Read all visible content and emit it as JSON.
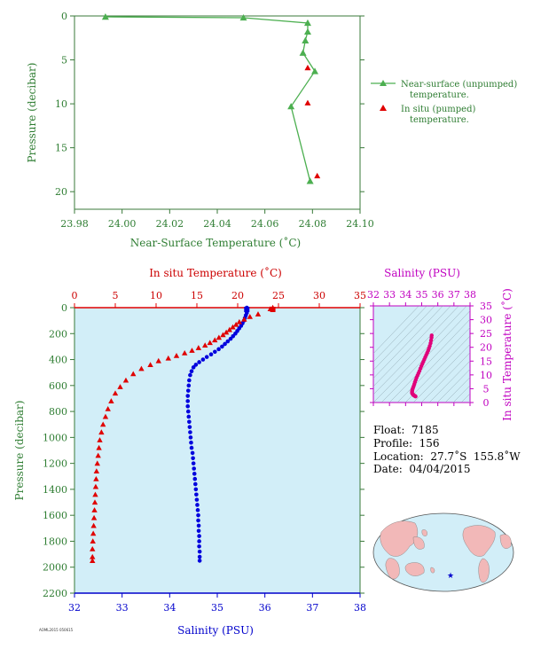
{
  "chart_data": [
    {
      "type": "line",
      "xlabel": "Near-Surface Temperature (˚C)",
      "ylabel": "Pressure (decibar)",
      "xlim": [
        23.98,
        24.1
      ],
      "ylim": [
        0,
        22
      ],
      "x_ticks": [
        "23.98",
        "24.00",
        "24.02",
        "24.04",
        "24.06",
        "24.08",
        "24.10"
      ],
      "y_ticks": [
        "0",
        "5",
        "10",
        "15",
        "20"
      ],
      "grid": false,
      "legend_position": "right",
      "series": [
        {
          "name": "Near-surface (unpumped) temperature.",
          "color": "#4caf50",
          "marker": "triangle",
          "points": [
            {
              "x": 23.993,
              "y": 0.1
            },
            {
              "x": 24.051,
              "y": 0.2
            },
            {
              "x": 24.078,
              "y": 0.8
            },
            {
              "x": 24.078,
              "y": 1.8
            },
            {
              "x": 24.077,
              "y": 2.8
            },
            {
              "x": 24.076,
              "y": 4.2
            },
            {
              "x": 24.081,
              "y": 6.3
            },
            {
              "x": 24.071,
              "y": 10.3
            },
            {
              "x": 24.079,
              "y": 18.8
            }
          ]
        },
        {
          "name": "In situ (pumped) temperature.",
          "color": "#e00000",
          "marker": "triangle",
          "points": [
            {
              "x": 24.078,
              "y": 5.9
            },
            {
              "x": 24.078,
              "y": 9.9
            },
            {
              "x": 24.082,
              "y": 18.2
            }
          ]
        }
      ]
    },
    {
      "type": "scatter",
      "ylabel": "Pressure (decibar)",
      "ylim": [
        0,
        2200
      ],
      "y_ticks": [
        "0",
        "200",
        "400",
        "600",
        "800",
        "1000",
        "1200",
        "1400",
        "1600",
        "1800",
        "2000",
        "2200"
      ],
      "top_axis": {
        "label": "In situ Temperature (˚C)",
        "lim": [
          0,
          35
        ],
        "ticks": [
          "0",
          "5",
          "10",
          "15",
          "20",
          "25",
          "30",
          "35"
        ]
      },
      "bottom_axis": {
        "label": "Salinity (PSU)",
        "lim": [
          32,
          38
        ],
        "ticks": [
          "32",
          "33",
          "34",
          "35",
          "36",
          "37",
          "38"
        ]
      },
      "background": "#d2eef8",
      "series": [
        {
          "name": "Temperature",
          "color": "#e00000",
          "marker": "triangle",
          "points": [
            [
              24.3,
              0
            ],
            [
              24.0,
              10
            ],
            [
              22.5,
              50
            ],
            [
              21.5,
              70
            ],
            [
              20.8,
              90
            ],
            [
              20.2,
              110
            ],
            [
              19.8,
              130
            ],
            [
              19.4,
              150
            ],
            [
              19.0,
              170
            ],
            [
              18.6,
              190
            ],
            [
              18.2,
              210
            ],
            [
              17.7,
              230
            ],
            [
              17.2,
              250
            ],
            [
              16.6,
              270
            ],
            [
              16.0,
              290
            ],
            [
              15.2,
              310
            ],
            [
              14.4,
              330
            ],
            [
              13.5,
              350
            ],
            [
              12.5,
              370
            ],
            [
              11.5,
              390
            ],
            [
              10.3,
              410
            ],
            [
              9.3,
              440
            ],
            [
              8.2,
              470
            ],
            [
              7.2,
              510
            ],
            [
              6.3,
              560
            ],
            [
              5.6,
              610
            ],
            [
              5.0,
              660
            ],
            [
              4.5,
              720
            ],
            [
              4.1,
              780
            ],
            [
              3.8,
              840
            ],
            [
              3.5,
              900
            ],
            [
              3.3,
              960
            ],
            [
              3.1,
              1020
            ],
            [
              3.0,
              1080
            ],
            [
              2.9,
              1140
            ],
            [
              2.8,
              1200
            ],
            [
              2.7,
              1260
            ],
            [
              2.65,
              1320
            ],
            [
              2.6,
              1380
            ],
            [
              2.55,
              1440
            ],
            [
              2.5,
              1500
            ],
            [
              2.45,
              1560
            ],
            [
              2.4,
              1620
            ],
            [
              2.35,
              1680
            ],
            [
              2.3,
              1740
            ],
            [
              2.25,
              1800
            ],
            [
              2.2,
              1860
            ],
            [
              2.2,
              1920
            ],
            [
              2.2,
              1950
            ]
          ]
        },
        {
          "name": "Salinity",
          "color": "#0000dd",
          "marker": "circle",
          "points": [
            [
              35.62,
              0
            ],
            [
              35.63,
              20
            ],
            [
              35.62,
              40
            ],
            [
              35.6,
              60
            ],
            [
              35.58,
              80
            ],
            [
              35.56,
              100
            ],
            [
              35.53,
              120
            ],
            [
              35.5,
              140
            ],
            [
              35.46,
              160
            ],
            [
              35.42,
              180
            ],
            [
              35.38,
              200
            ],
            [
              35.33,
              220
            ],
            [
              35.28,
              240
            ],
            [
              35.22,
              260
            ],
            [
              35.16,
              280
            ],
            [
              35.1,
              300
            ],
            [
              35.03,
              320
            ],
            [
              34.95,
              340
            ],
            [
              34.87,
              360
            ],
            [
              34.78,
              380
            ],
            [
              34.7,
              400
            ],
            [
              34.62,
              420
            ],
            [
              34.55,
              440
            ],
            [
              34.5,
              460
            ],
            [
              34.46,
              490
            ],
            [
              34.43,
              520
            ],
            [
              34.41,
              560
            ],
            [
              34.4,
              600
            ],
            [
              34.39,
              640
            ],
            [
              34.38,
              680
            ],
            [
              34.38,
              720
            ],
            [
              34.38,
              760
            ],
            [
              34.39,
              800
            ],
            [
              34.4,
              840
            ],
            [
              34.41,
              880
            ],
            [
              34.42,
              920
            ],
            [
              34.43,
              960
            ],
            [
              34.44,
              1000
            ],
            [
              34.45,
              1040
            ],
            [
              34.46,
              1080
            ],
            [
              34.48,
              1120
            ],
            [
              34.49,
              1160
            ],
            [
              34.5,
              1200
            ],
            [
              34.51,
              1240
            ],
            [
              34.52,
              1280
            ],
            [
              34.53,
              1320
            ],
            [
              34.54,
              1360
            ],
            [
              34.55,
              1400
            ],
            [
              34.56,
              1440
            ],
            [
              34.57,
              1480
            ],
            [
              34.58,
              1520
            ],
            [
              34.59,
              1560
            ],
            [
              34.6,
              1600
            ],
            [
              34.6,
              1640
            ],
            [
              34.61,
              1680
            ],
            [
              34.61,
              1720
            ],
            [
              34.62,
              1760
            ],
            [
              34.62,
              1800
            ],
            [
              34.62,
              1840
            ],
            [
              34.63,
              1880
            ],
            [
              34.63,
              1920
            ],
            [
              34.63,
              1950
            ]
          ]
        }
      ]
    },
    {
      "type": "scatter",
      "xlabel": "Salinity (PSU)",
      "ylabel": "In situ Temperature (˚C)",
      "xlim": [
        32,
        38
      ],
      "ylim": [
        0,
        35
      ],
      "x_ticks": [
        "32",
        "33",
        "34",
        "35",
        "36",
        "37",
        "38"
      ],
      "y_ticks": [
        "0",
        "5",
        "10",
        "15",
        "20",
        "25",
        "30",
        "35"
      ],
      "color": "#e0007a",
      "background": "#d2eef8",
      "points": [
        [
          35.62,
          24.3
        ],
        [
          35.61,
          23.5
        ],
        [
          35.58,
          22.5
        ],
        [
          35.55,
          21.5
        ],
        [
          35.5,
          20.5
        ],
        [
          35.45,
          19.6
        ],
        [
          35.4,
          18.8
        ],
        [
          35.34,
          18.0
        ],
        [
          35.28,
          17.2
        ],
        [
          35.22,
          16.4
        ],
        [
          35.16,
          15.6
        ],
        [
          35.1,
          14.8
        ],
        [
          35.04,
          14.0
        ],
        [
          34.98,
          13.2
        ],
        [
          34.92,
          12.3
        ],
        [
          34.86,
          11.4
        ],
        [
          34.8,
          10.6
        ],
        [
          34.74,
          9.8
        ],
        [
          34.68,
          9.0
        ],
        [
          34.63,
          8.2
        ],
        [
          34.58,
          7.4
        ],
        [
          34.54,
          6.6
        ],
        [
          34.5,
          5.9
        ],
        [
          34.46,
          5.3
        ],
        [
          34.43,
          4.8
        ],
        [
          34.41,
          4.3
        ],
        [
          34.4,
          3.9
        ],
        [
          34.4,
          3.5
        ],
        [
          34.42,
          3.2
        ],
        [
          34.45,
          3.0
        ],
        [
          34.48,
          2.8
        ],
        [
          34.51,
          2.6
        ],
        [
          34.54,
          2.5
        ],
        [
          34.57,
          2.4
        ],
        [
          34.6,
          2.3
        ],
        [
          34.62,
          2.2
        ]
      ]
    }
  ],
  "info": {
    "float": "Float:  7185",
    "profile": "Profile:  156",
    "location": "Location:  27.7˚S  155.8˚W",
    "date": "Date:  04/04/2015"
  },
  "map_marker_color": "#0000cc",
  "footer_code": "AOML2015 050615"
}
